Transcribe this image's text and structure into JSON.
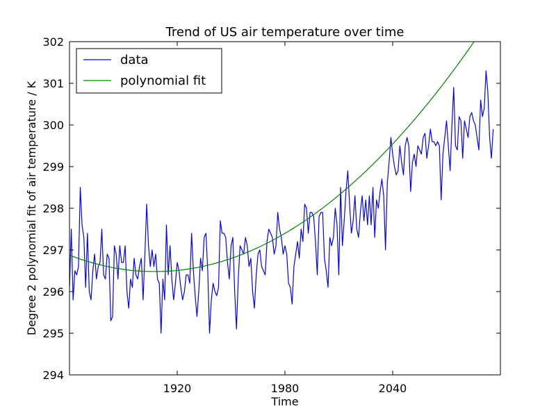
{
  "chart_data": {
    "type": "line",
    "title": "Trend of US air temperature over time",
    "xlabel": "Time",
    "ylabel": "Degree 2 polynomial fit of air temperature / K",
    "xlim": [
      1860,
      2100
    ],
    "ylim": [
      294,
      302
    ],
    "x_ticks": [
      1920,
      1980,
      2040
    ],
    "x_tick_labels": [
      "1920",
      "1980",
      "2040"
    ],
    "y_ticks": [
      294,
      295,
      296,
      297,
      298,
      299,
      300,
      301,
      302
    ],
    "y_tick_labels": [
      "294",
      "295",
      "296",
      "297",
      "298",
      "299",
      "300",
      "301",
      "302"
    ],
    "grid": false,
    "legend_position": "top-left",
    "colors": {
      "data": "#0000ff",
      "fit": "#008000"
    },
    "series": [
      {
        "name": "data",
        "x_start": 1860,
        "x_step": 1,
        "values": [
          296.1,
          297.5,
          295.8,
          296.5,
          296.4,
          296.6,
          298.5,
          297.6,
          297.3,
          296.1,
          297.4,
          296.0,
          295.8,
          296.5,
          296.9,
          296.3,
          296.6,
          296.7,
          297.5,
          296.4,
          296.3,
          296.9,
          296.8,
          295.3,
          295.4,
          297.1,
          296.9,
          296.3,
          297.1,
          296.7,
          296.7,
          297.1,
          296.0,
          295.6,
          296.3,
          296.1,
          296.8,
          296.4,
          296.3,
          296.6,
          296.8,
          295.8,
          296.9,
          298.1,
          297.1,
          296.6,
          297.0,
          296.6,
          296.9,
          296.3,
          296.2,
          295.0,
          296.3,
          295.8,
          297.6,
          296.4,
          297.1,
          296.3,
          295.8,
          296.2,
          296.7,
          296.5,
          296.1,
          295.8,
          296.0,
          296.4,
          296.4,
          296.2,
          297.4,
          296.5,
          295.9,
          295.4,
          296.0,
          296.8,
          296.5,
          297.3,
          297.4,
          296.5,
          295.0,
          295.8,
          296.2,
          296.0,
          295.9,
          296.1,
          297.7,
          297.4,
          297.4,
          297.3,
          296.7,
          296.3,
          297.1,
          297.3,
          296.0,
          295.1,
          296.3,
          297.1,
          297.0,
          296.9,
          297.3,
          297.1,
          296.6,
          296.8,
          296.0,
          295.6,
          296.4,
          296.9,
          297.0,
          296.6,
          296.5,
          296.4,
          297.2,
          297.5,
          297.4,
          297.3,
          296.9,
          297.1,
          297.9,
          297.5,
          297.3,
          296.9,
          297.1,
          296.9,
          296.2,
          296.1,
          295.7,
          296.6,
          296.9,
          297.2,
          296.8,
          297.5,
          297.2,
          298.1,
          298.0,
          297.4,
          297.9,
          297.9,
          297.8,
          297.2,
          296.4,
          297.8,
          297.9,
          297.9,
          296.8,
          296.5,
          296.1,
          297.3,
          297.1,
          297.3,
          298.0,
          297.6,
          296.4,
          298.5,
          297.1,
          297.7,
          298.4,
          298.9,
          298.1,
          297.4,
          297.7,
          298.3,
          297.5,
          297.3,
          297.9,
          298.3,
          297.7,
          298.2,
          297.6,
          298.3,
          297.6,
          298.5,
          297.3,
          298.2,
          298.0,
          298.4,
          298.7,
          298.3,
          297.0,
          298.6,
          299.1,
          299.7,
          299.3,
          299.0,
          298.8,
          298.9,
          299.5,
          299.1,
          298.8,
          299.5,
          299.7,
          299.5,
          298.4,
          299.1,
          299.3,
          299.0,
          299.5,
          299.4,
          299.3,
          299.7,
          299.8,
          299.2,
          299.5,
          299.9,
          299.6,
          299.6,
          299.5,
          299.6,
          299.5,
          298.2,
          299.3,
          299.7,
          300.1,
          299.5,
          298.9,
          300.0,
          300.9,
          299.5,
          299.4,
          300.2,
          300.1,
          299.2,
          300.1,
          299.9,
          299.7,
          300.2,
          300.3,
          300.1,
          300.0,
          299.7,
          299.4,
          300.6,
          300.2,
          300.4,
          301.3,
          300.8,
          299.7,
          299.2,
          299.9
        ]
      },
      {
        "name": "polynomial fit",
        "fit_degree": 2,
        "coefficients": [
          296.48,
          0.0001745,
          1907.5
        ]
      }
    ]
  }
}
